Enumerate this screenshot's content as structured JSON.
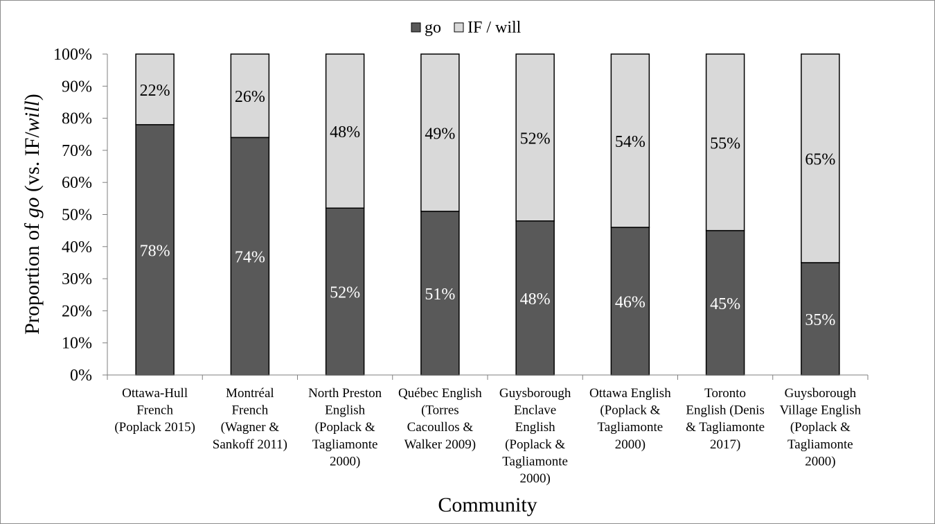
{
  "chart_data": {
    "type": "bar",
    "stacked": true,
    "percent_stacked": true,
    "title": "",
    "xlabel": "Community",
    "ylabel": {
      "prefix": "Proportion of ",
      "italic1": "go",
      "middle": " (vs. IF/",
      "italic2": "will",
      "suffix": ")"
    },
    "ylim": [
      0,
      100
    ],
    "yticks": [
      "0%",
      "10%",
      "20%",
      "30%",
      "40%",
      "50%",
      "60%",
      "70%",
      "80%",
      "90%",
      "100%"
    ],
    "grid": false,
    "legend_position": "top-center",
    "categories": [
      [
        "Ottawa-Hull",
        "French",
        "(Poplack 2015)"
      ],
      [
        "Montréal",
        "French",
        "(Wagner &",
        "Sankoff 2011)"
      ],
      [
        "North Preston",
        "English",
        "(Poplack &",
        "Tagliamonte",
        "2000)"
      ],
      [
        "Québec English",
        "(Torres",
        "Cacoullos &",
        "Walker 2009)"
      ],
      [
        "Guysborough",
        "Enclave",
        "English",
        "(Poplack &",
        "Tagliamonte",
        "2000)"
      ],
      [
        "Ottawa English",
        "(Poplack &",
        "Tagliamonte",
        "2000)"
      ],
      [
        "Toronto",
        "English (Denis",
        "& Tagliamonte",
        "2017)"
      ],
      [
        "Guysborough",
        "Village English",
        "(Poplack &",
        "Tagliamonte",
        "2000)"
      ]
    ],
    "series": [
      {
        "name": "go",
        "color": "#595959",
        "label_color": "#ffffff",
        "values": [
          78,
          74,
          52,
          51,
          48,
          46,
          45,
          35
        ],
        "labels": [
          "78%",
          "74%",
          "52%",
          "51%",
          "48%",
          "46%",
          "45%",
          "35%"
        ]
      },
      {
        "name": "IF / will",
        "color": "#d9d9d9",
        "label_color": "#000000",
        "values": [
          22,
          26,
          48,
          49,
          52,
          54,
          55,
          65
        ],
        "labels": [
          "22%",
          "26%",
          "48%",
          "49%",
          "52%",
          "54%",
          "55%",
          "65%"
        ]
      }
    ]
  }
}
